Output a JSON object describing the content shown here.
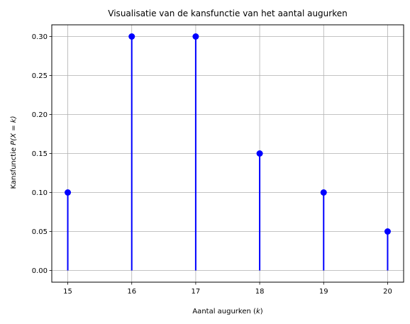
{
  "chart_data": {
    "type": "stem",
    "title": "Visualisatie van de kansfunctie van het aantal augurken",
    "xlabel_prefix": "Aantal augurken (",
    "xlabel_var": "k",
    "xlabel_suffix": ")",
    "ylabel_prefix": "Kansfunctie ",
    "ylabel_math": "P(X = k)",
    "x": [
      15,
      16,
      17,
      18,
      19,
      20
    ],
    "values": [
      0.1,
      0.3,
      0.3,
      0.15,
      0.1,
      0.05
    ],
    "xlim": [
      14.75,
      20.25
    ],
    "ylim": [
      -0.015,
      0.315
    ],
    "xticks": [
      15,
      16,
      17,
      18,
      19,
      20
    ],
    "xtick_labels": [
      "15",
      "16",
      "17",
      "18",
      "19",
      "20"
    ],
    "yticks": [
      0.0,
      0.05,
      0.1,
      0.15,
      0.2,
      0.25,
      0.3
    ],
    "ytick_labels": [
      "0.00",
      "0.05",
      "0.10",
      "0.15",
      "0.20",
      "0.25",
      "0.30"
    ],
    "grid": true,
    "colors": {
      "stem": "#0000ff",
      "grid": "#b0b0b0",
      "axis": "#000000"
    }
  }
}
